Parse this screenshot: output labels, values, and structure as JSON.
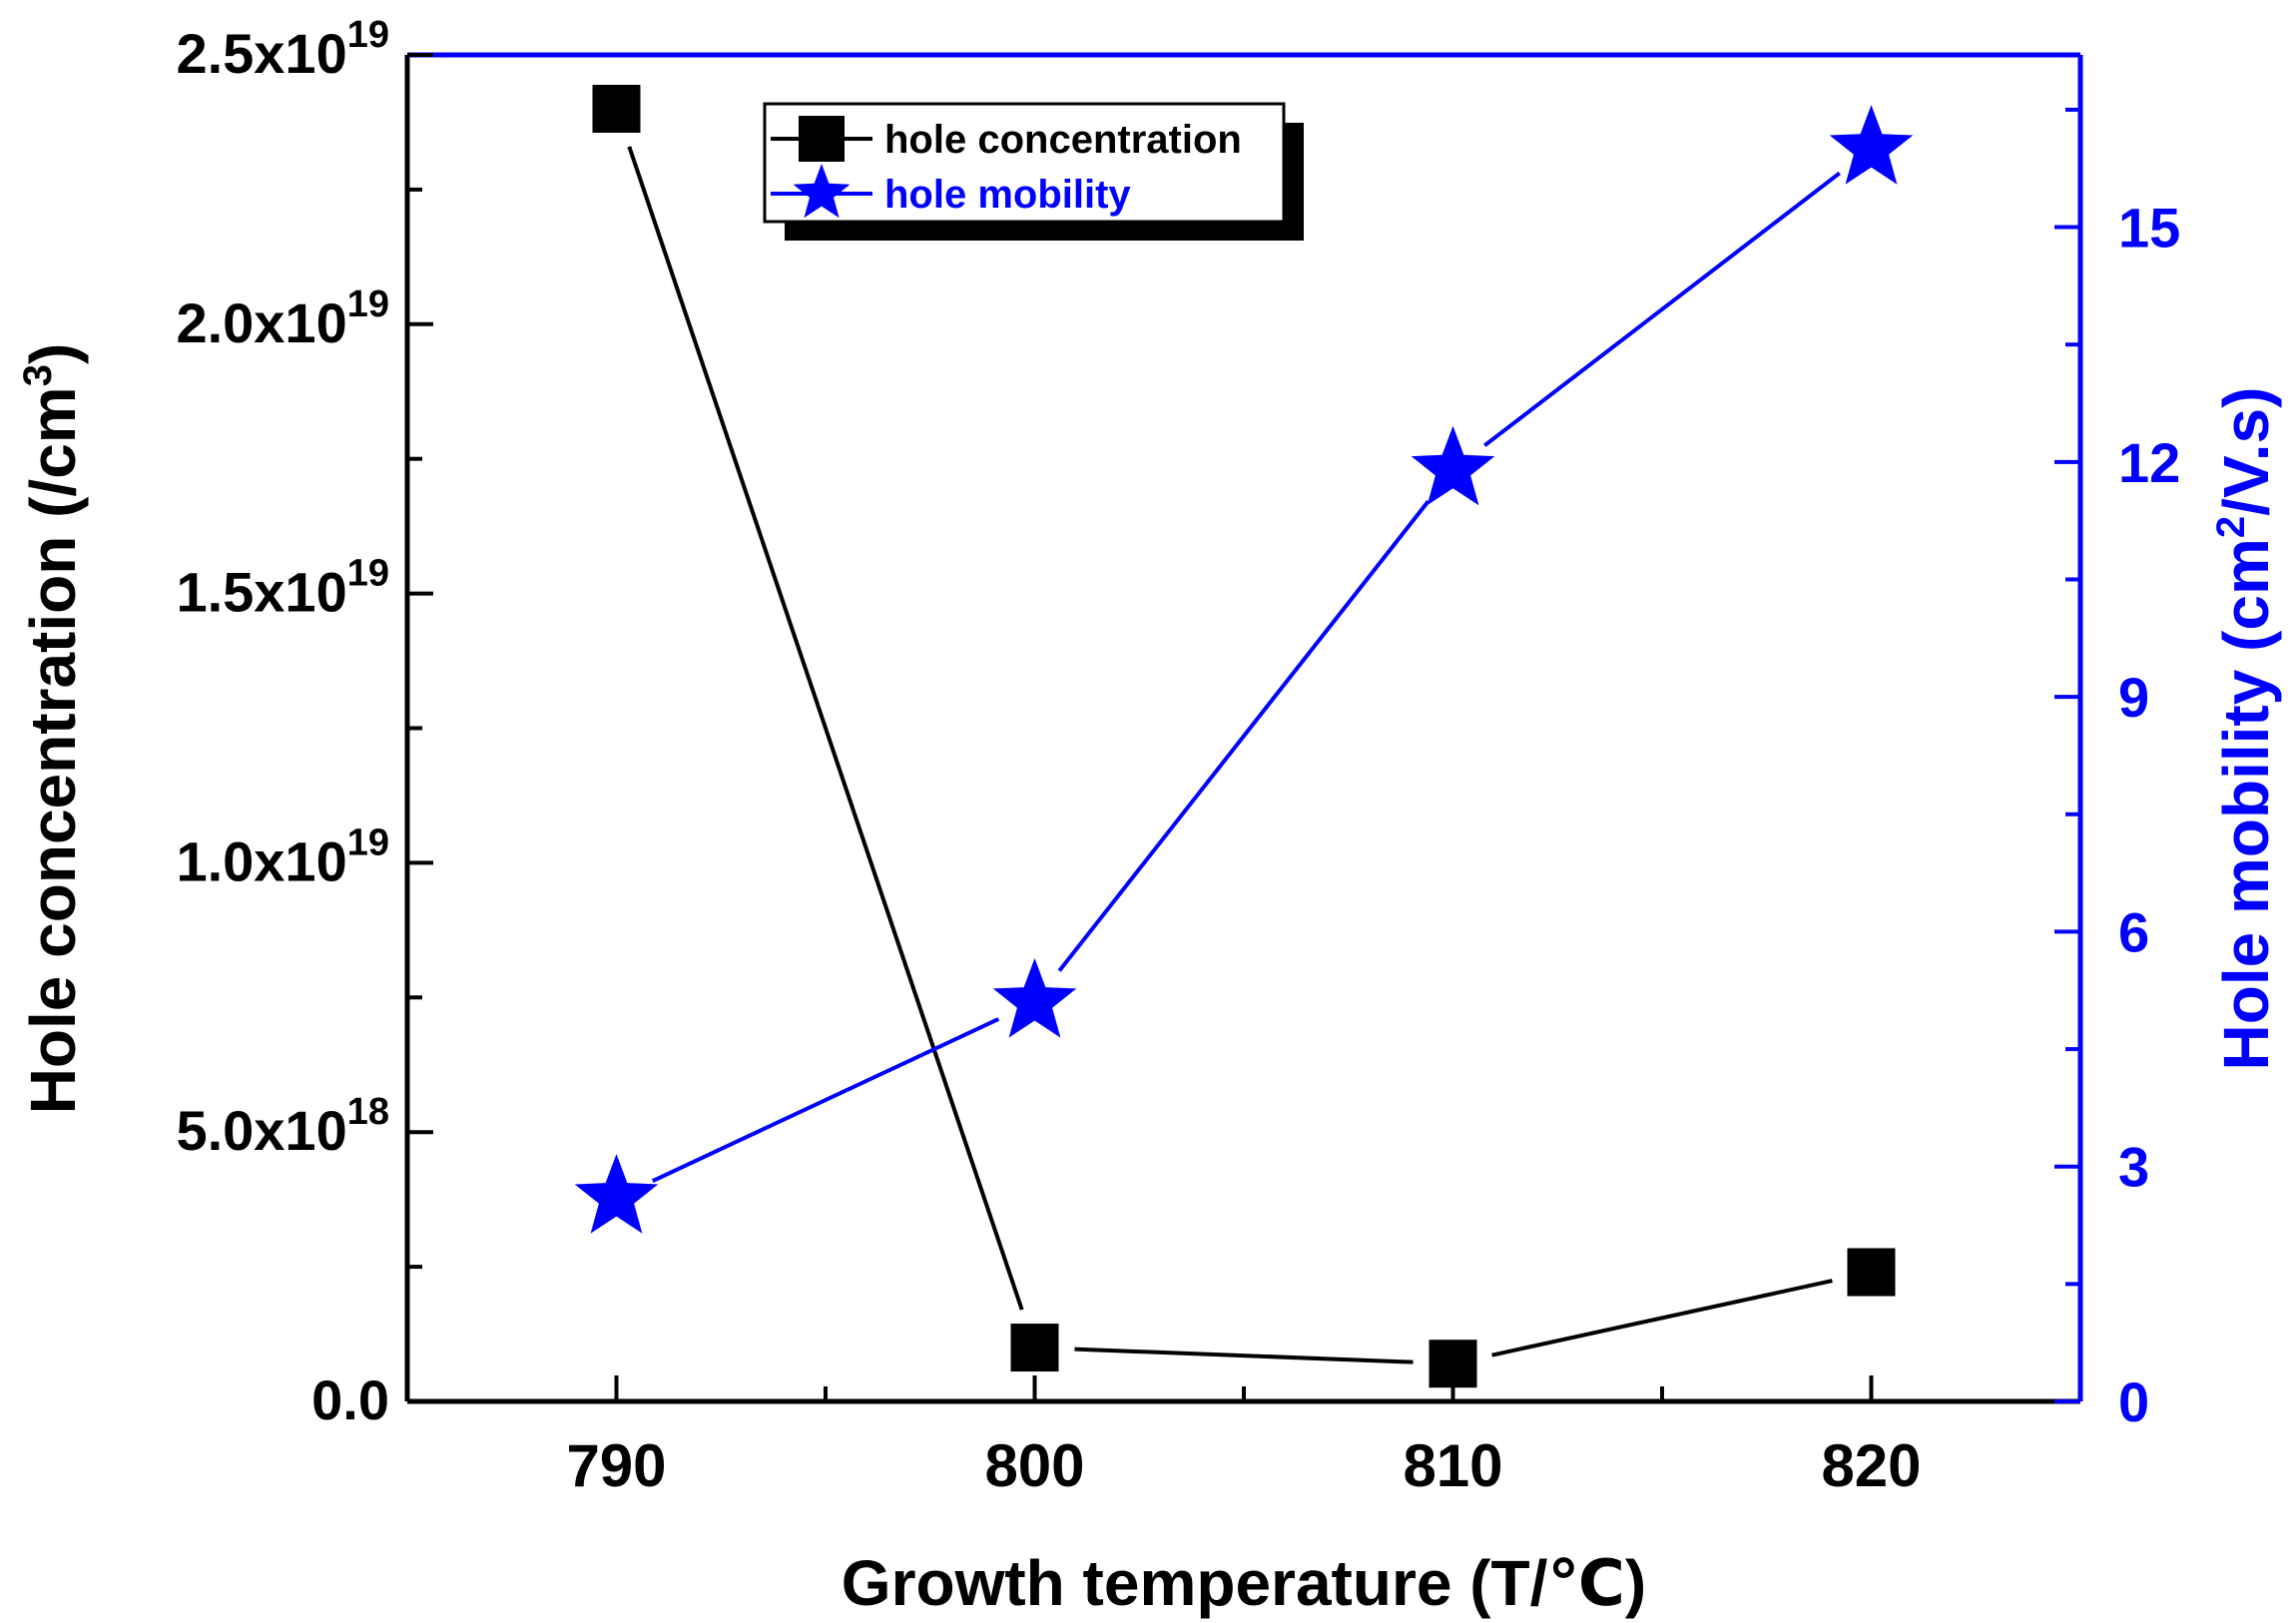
{
  "chart_data": {
    "type": "line",
    "title": "",
    "xlabel": "Growth temperature (T/℃)",
    "ylabel_left": "Hole concentration (/cm",
    "ylabel_left_sup": "3",
    "ylabel_left_close": ")",
    "ylabel_right": "Hole mobility (cm",
    "ylabel_right_sup": "2",
    "ylabel_right_close": "/V.s)",
    "xlim": [
      785,
      825
    ],
    "x_ticks": [
      790,
      800,
      810,
      820
    ],
    "x_tick_labels": [
      "790",
      "800",
      "810",
      "820"
    ],
    "ylim_left": [
      0,
      2.5e+19
    ],
    "y_left_ticks": [
      {
        "value": 0,
        "mantissa": "0.0",
        "exp": ""
      },
      {
        "value": 5e+18,
        "mantissa": "5.0x10",
        "exp": "18"
      },
      {
        "value": 1e+19,
        "mantissa": "1.0x10",
        "exp": "19"
      },
      {
        "value": 1.5e+19,
        "mantissa": "1.5x10",
        "exp": "19"
      },
      {
        "value": 2e+19,
        "mantissa": "2.0x10",
        "exp": "19"
      },
      {
        "value": 2.5e+19,
        "mantissa": "2.5x10",
        "exp": "19"
      }
    ],
    "ylim_right": [
      0,
      17.2
    ],
    "y_right_ticks": [
      0,
      3,
      6,
      9,
      12,
      15
    ],
    "series": [
      {
        "name": "hole concentration",
        "axis": "left",
        "marker": "square",
        "color": "#000000",
        "x": [
          790,
          800,
          810,
          820
        ],
        "values": [
          2.4e+19,
          1e+18,
          7e+17,
          2.4e+18
        ]
      },
      {
        "name": "hole mobility",
        "axis": "right",
        "marker": "star",
        "color": "#0000ff",
        "x": [
          790,
          800,
          810,
          820
        ],
        "values": [
          2.6,
          5.1,
          11.9,
          16.0
        ]
      }
    ],
    "legend_position": "top-center",
    "grid": false
  }
}
